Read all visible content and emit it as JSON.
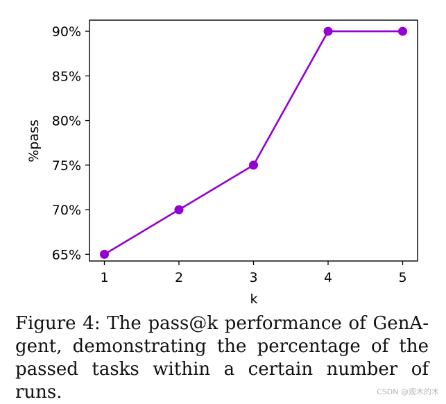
{
  "chart_data": {
    "type": "line",
    "title": "",
    "xlabel": "k",
    "ylabel": "%pass",
    "x": [
      1,
      2,
      3,
      4,
      5
    ],
    "series": [
      {
        "values": [
          65,
          70,
          75,
          90,
          90
        ],
        "color": "#9400d3"
      }
    ],
    "xticks": [
      1,
      2,
      3,
      4,
      5
    ],
    "xtick_labels": [
      "1",
      "2",
      "3",
      "4",
      "5"
    ],
    "yticks": [
      65,
      70,
      75,
      80,
      85,
      90
    ],
    "ytick_labels": [
      "65%",
      "70%",
      "75%",
      "80%",
      "85%",
      "90%"
    ],
    "xlim": [
      0.8,
      5.2
    ],
    "ylim": [
      64.25,
      91.25
    ],
    "grid": false,
    "legend": "none"
  },
  "caption": {
    "text": "Figure 4: The pass@k performance of GenA- gent, demonstrating the percentage of the passed tasks within a certain number of runs."
  },
  "watermark": {
    "text": "CSDN @观木的木"
  }
}
